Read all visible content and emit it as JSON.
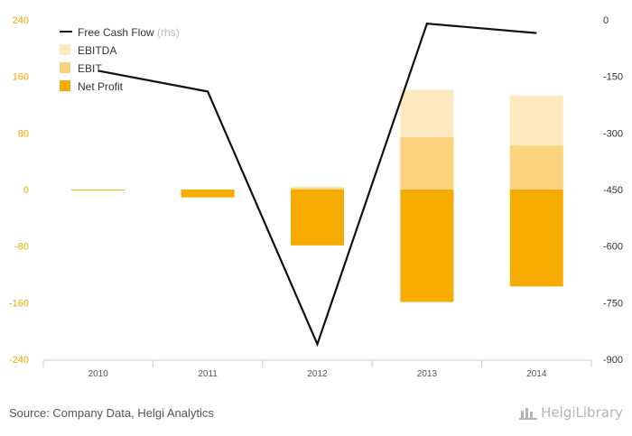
{
  "chart_data": {
    "type": "bar",
    "categories": [
      "2010",
      "2011",
      "2012",
      "2013",
      "2014"
    ],
    "series": [
      {
        "name": "EBITDA",
        "kind": "bar",
        "axis": "left",
        "color": "#fde9bf",
        "values": [
          -1,
          -11,
          4,
          141,
          133
        ]
      },
      {
        "name": "EBIT",
        "kind": "bar",
        "axis": "left",
        "color": "#fbd37f",
        "values": [
          -1,
          -11,
          2,
          74,
          62
        ]
      },
      {
        "name": "Net Profit",
        "kind": "bar",
        "axis": "left",
        "color": "#f5ab00",
        "values": [
          -1,
          -11,
          -79,
          -159,
          -137
        ]
      },
      {
        "name": "Free Cash Flow",
        "kind": "line",
        "axis": "right",
        "color": "#111111",
        "values": [
          -135,
          -190,
          -860,
          -10,
          -35
        ]
      }
    ],
    "y_left": {
      "ticks": [
        "240",
        "160",
        "80",
        "0",
        "-80",
        "-160",
        "-240"
      ],
      "range": [
        -240,
        240
      ]
    },
    "y_right": {
      "ticks": [
        "0",
        "-150",
        "-300",
        "-450",
        "-600",
        "-750",
        "-900"
      ],
      "range": [
        -900,
        0
      ]
    },
    "legend": {
      "placement": "top-left",
      "items": [
        {
          "name": "Free Cash Flow",
          "suffix": "(rhs)",
          "swatch": "line",
          "color": "#111111"
        },
        {
          "name": "EBITDA",
          "suffix": "",
          "swatch": "box",
          "color": "#fde9bf"
        },
        {
          "name": "EBIT",
          "suffix": "",
          "swatch": "box",
          "color": "#fbd37f"
        },
        {
          "name": "Net Profit",
          "suffix": "",
          "swatch": "box",
          "color": "#f5ab00"
        }
      ]
    },
    "grid": false
  },
  "footer": {
    "source": "Source: Company Data, Helgi Analytics",
    "brand": "HelgiLibrary"
  }
}
